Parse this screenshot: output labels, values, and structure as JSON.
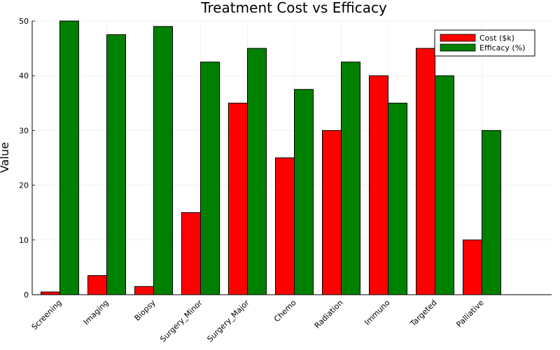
{
  "chart_data": {
    "type": "bar",
    "title": "Treatment Cost vs Efficacy",
    "xlabel": "",
    "ylabel": "Value",
    "ylim": [
      0,
      50
    ],
    "yticks": [
      0,
      10,
      20,
      30,
      40,
      50
    ],
    "grid": true,
    "legend_position": "top-right",
    "categories": [
      "Screening",
      "Imaging",
      "Biopsy",
      "Surgery_Minor",
      "Surgery_Major",
      "Chemo",
      "Radiation",
      "Immuno",
      "Targeted",
      "Palliative"
    ],
    "series": [
      {
        "name": "Cost ($k)",
        "color": "#ff0000",
        "values": [
          0.5,
          3.5,
          1.5,
          15,
          35,
          25,
          30,
          40,
          45,
          10
        ]
      },
      {
        "name": "Efficacy (%)",
        "color": "#008000",
        "values": [
          50,
          47.5,
          49,
          42.5,
          45,
          37.5,
          42.5,
          35,
          40,
          30
        ]
      }
    ]
  }
}
